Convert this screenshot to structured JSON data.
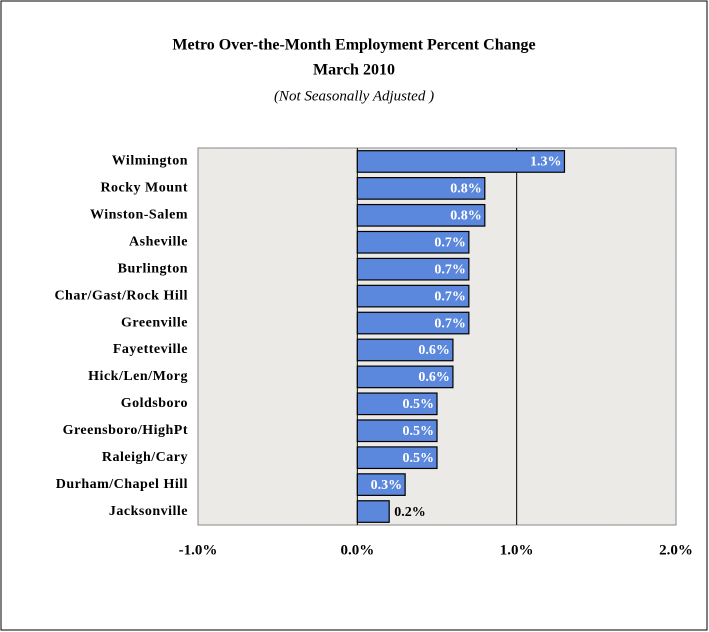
{
  "chart_data": {
    "type": "bar",
    "orientation": "horizontal",
    "title": "Metro Over-the-Month Employment Percent Change",
    "subtitle": "March 2010",
    "note": "(Not Seasonally Adjusted )",
    "categories": [
      "Wilmington",
      "Rocky Mount",
      "Winston-Salem",
      "Asheville",
      "Burlington",
      "Char/Gast/Rock Hill",
      "Greenville",
      "Fayetteville",
      "Hick/Len/Morg",
      "Goldsboro",
      "Greensboro/HighPt",
      "Raleigh/Cary",
      "Durham/Chapel Hill",
      "Jacksonville"
    ],
    "values": [
      1.3,
      0.8,
      0.8,
      0.7,
      0.7,
      0.7,
      0.7,
      0.6,
      0.6,
      0.5,
      0.5,
      0.5,
      0.3,
      0.2
    ],
    "value_labels": [
      "1.3%",
      "0.8%",
      "0.8%",
      "0.7%",
      "0.7%",
      "0.7%",
      "0.7%",
      "0.6%",
      "0.6%",
      "0.5%",
      "0.5%",
      "0.5%",
      "0.3%",
      "0.2%"
    ],
    "color": "#5b87dc",
    "xlim": [
      -1,
      2
    ],
    "xticks": [
      {
        "value": -1,
        "label": "-1.0%"
      },
      {
        "value": 0,
        "label": "0.0%"
      },
      {
        "value": 1,
        "label": "1.0%"
      },
      {
        "value": 2,
        "label": "2.0%"
      }
    ],
    "grid": true
  }
}
